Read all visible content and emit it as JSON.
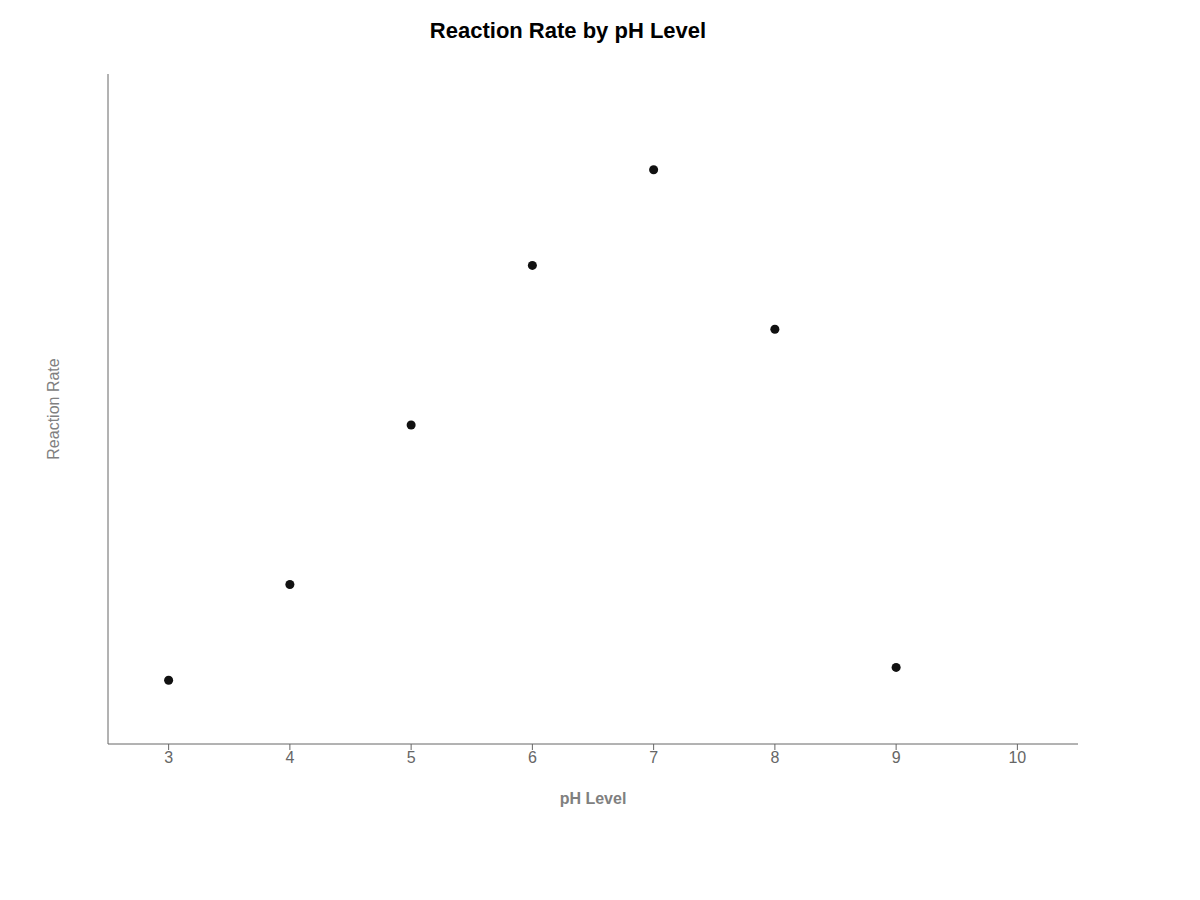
{
  "chart_data": {
    "type": "scatter",
    "title": "Reaction Rate by pH Level",
    "xlabel": "pH Level",
    "ylabel": "Reaction Rate",
    "x": [
      3,
      4,
      5,
      6,
      7,
      8,
      9
    ],
    "values": [
      1.0,
      2.5,
      5.0,
      7.5,
      9.0,
      6.5,
      1.2
    ],
    "color": "#111111",
    "xlim": [
      2.5,
      10.5
    ],
    "ylim": [
      0,
      10.5
    ],
    "xticks": [
      3,
      4,
      5,
      6,
      7,
      8,
      9,
      10
    ],
    "grid": false,
    "tick_labels": "x"
  }
}
